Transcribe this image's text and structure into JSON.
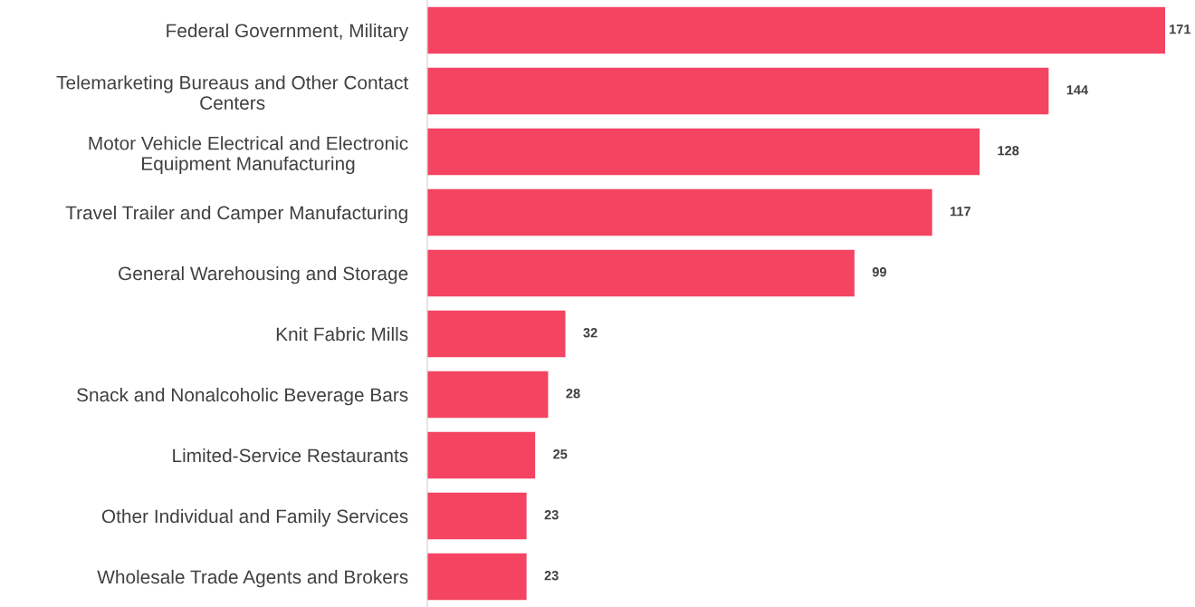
{
  "chart_data": {
    "type": "bar",
    "orientation": "horizontal",
    "data_labels": true,
    "tick_labels": "y",
    "categories": [
      "Federal Government, Military",
      "Telemarketing Bureaus and Other Contact\nCenters",
      "Motor Vehicle Electrical and Electronic\nEquipment Manufacturing",
      "Travel Trailer and Camper Manufacturing",
      "General Warehousing and Storage",
      "Knit Fabric Mills",
      "Snack and Nonalcoholic Beverage Bars",
      "Limited-Service Restaurants",
      "Other Individual and Family Services",
      "Wholesale Trade Agents and Brokers"
    ],
    "values": [
      171,
      144,
      128,
      117,
      99,
      32,
      28,
      25,
      23,
      23
    ],
    "color": "#f44462"
  }
}
